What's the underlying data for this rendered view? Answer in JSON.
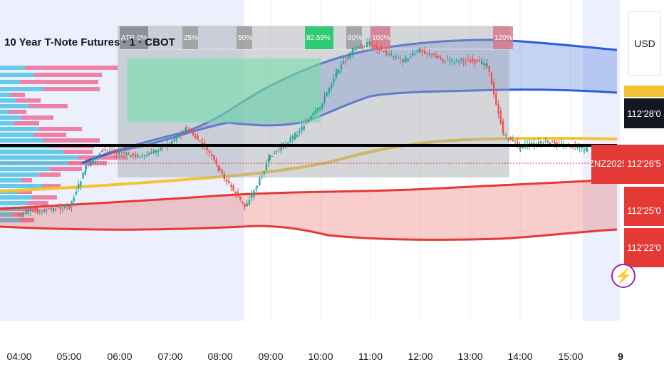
{
  "title": "10 Year T-Note Futures · 1 · CBOT",
  "currency": "USD",
  "day_marker": "9",
  "symbol_tag": "ZNZ2025",
  "colors": {
    "up": "#26a69a",
    "down": "#ef5350",
    "session_shade": "#ecf0fc",
    "blue_band": "#2b5fd9",
    "red_band": "#e53935",
    "yellow_line": "#f4c430",
    "range_box": "#c8cbd0",
    "target_box": "#8ee0b0"
  },
  "chart_data": {
    "type": "candlestick",
    "title": "10 Year T-Note Futures · 1 · CBOT",
    "x_ticks": [
      "04:00",
      "05:00",
      "06:00",
      "07:00",
      "08:00",
      "09:00",
      "10:00",
      "11:00",
      "12:00",
      "13:00",
      "14:00",
      "15:00"
    ],
    "price_tags": [
      {
        "label": "112'28'0",
        "style": "dark"
      },
      {
        "label": "112'26'5",
        "style": "red"
      },
      {
        "label": "112'25'0",
        "style": "red"
      },
      {
        "label": "112'22'0",
        "style": "red"
      }
    ],
    "range_levels": [
      "ATR 0%",
      "25%",
      "50%",
      "82.59%",
      "90%",
      "100%",
      "120%"
    ],
    "close_series": [
      {
        "time": "04:00",
        "close": 112.18
      },
      {
        "time": "05:00",
        "close": 112.19
      },
      {
        "time": "05:20",
        "close": 112.245
      },
      {
        "time": "05:40",
        "close": 112.27
      },
      {
        "time": "06:00",
        "close": 112.265
      },
      {
        "time": "06:30",
        "close": 112.26
      },
      {
        "time": "07:00",
        "close": 112.28
      },
      {
        "time": "07:20",
        "close": 112.3
      },
      {
        "time": "07:45",
        "close": 112.27
      },
      {
        "time": "08:00",
        "close": 112.24
      },
      {
        "time": "08:30",
        "close": 112.19
      },
      {
        "time": "08:45",
        "close": 112.22
      },
      {
        "time": "09:00",
        "close": 112.26
      },
      {
        "time": "09:30",
        "close": 112.29
      },
      {
        "time": "10:00",
        "close": 112.33
      },
      {
        "time": "10:20",
        "close": 112.38
      },
      {
        "time": "10:40",
        "close": 112.41
      },
      {
        "time": "11:00",
        "close": 112.42
      },
      {
        "time": "11:20",
        "close": 112.405
      },
      {
        "time": "11:40",
        "close": 112.395
      },
      {
        "time": "12:00",
        "close": 112.41
      },
      {
        "time": "12:30",
        "close": 112.395
      },
      {
        "time": "13:00",
        "close": 112.395
      },
      {
        "time": "13:20",
        "close": 112.39
      },
      {
        "time": "13:40",
        "close": 112.29
      },
      {
        "time": "14:00",
        "close": 112.275
      },
      {
        "time": "14:30",
        "close": 112.28
      },
      {
        "time": "15:00",
        "close": 112.275
      },
      {
        "time": "15:20",
        "close": 112.27
      }
    ]
  }
}
